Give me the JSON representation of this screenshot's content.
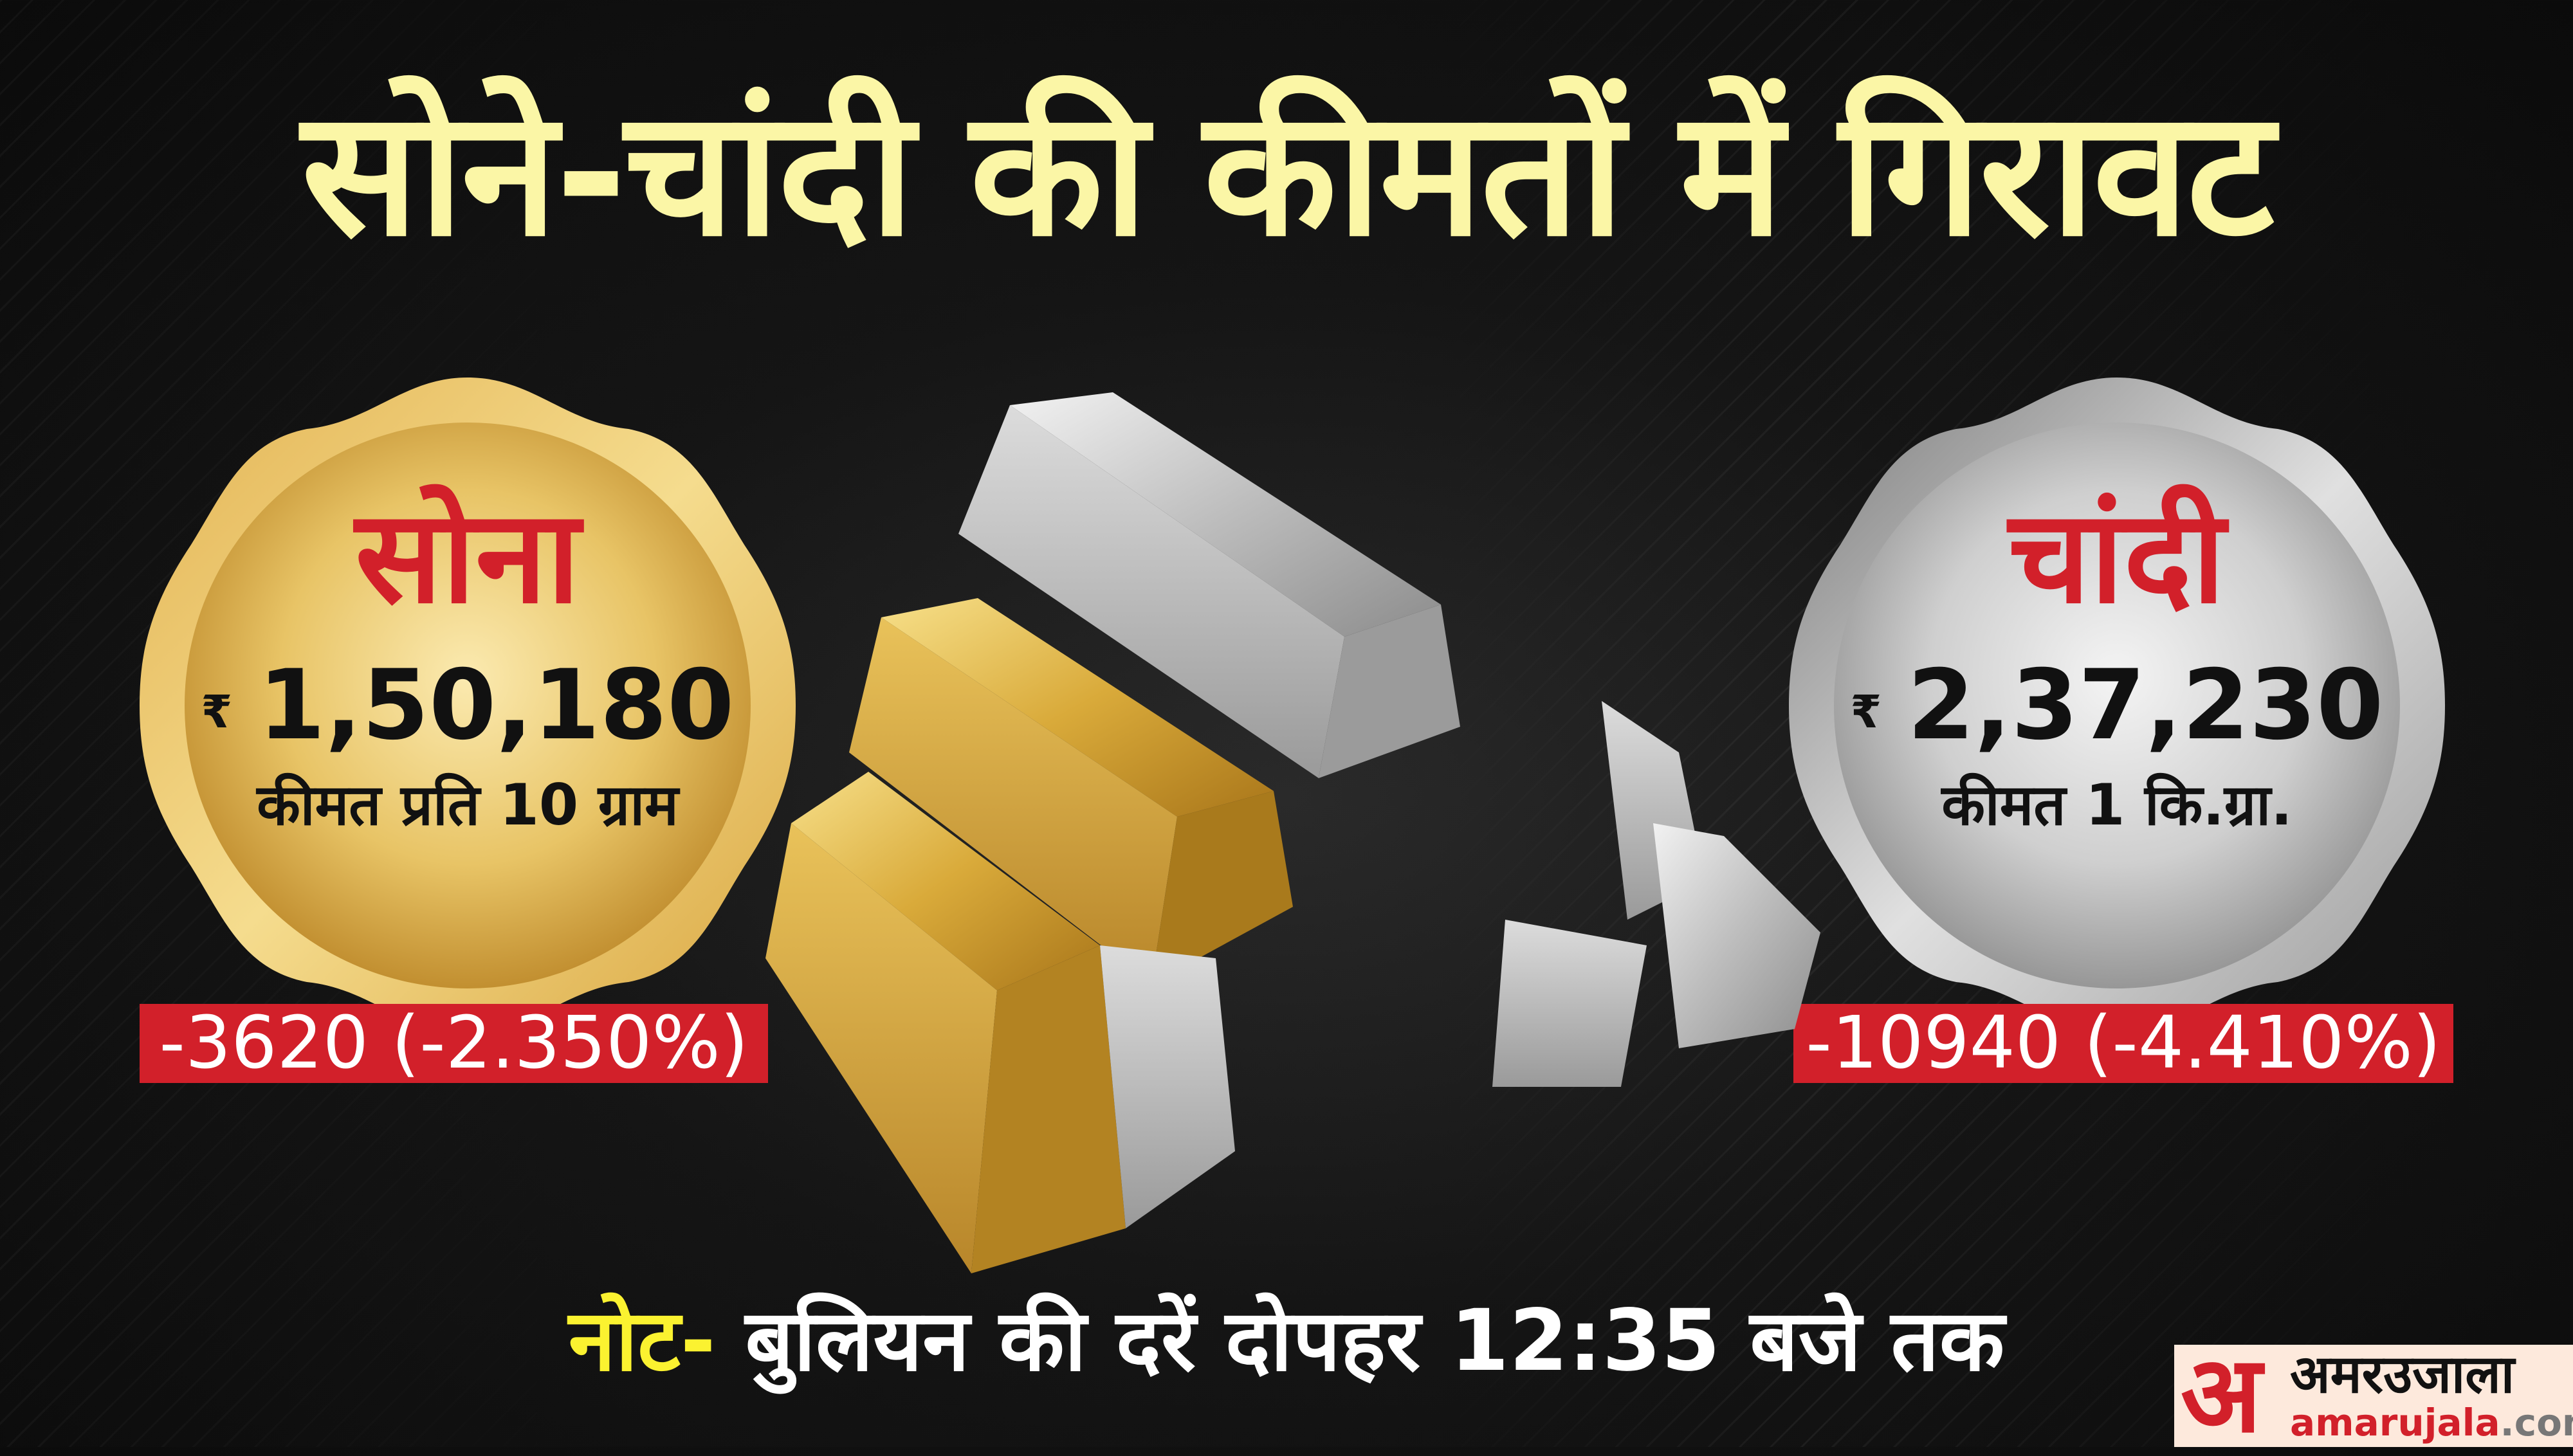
{
  "headline": "सोने-चांदी की कीमतों में गिरावट",
  "gold": {
    "name": "सोना",
    "currency_symbol": "₹",
    "price": "1,50,180",
    "unit": "कीमत प्रति 10 ग्राम",
    "change": "-3620 (-2.350%)",
    "badge_color": "#e6b650"
  },
  "silver": {
    "name": "चांदी",
    "currency_symbol": "₹",
    "price": "2,37,230",
    "unit": "कीमत 1 कि.ग्रा.",
    "change": "-10940 (-4.410%)",
    "badge_color": "#c8c8c8"
  },
  "note": {
    "label": "नोट-",
    "text": "बुलियन की दरें दोपहर 12:35 बजे तक"
  },
  "logo": {
    "mark": "अ",
    "hindi": "अमरउजाला",
    "site": "amarujala",
    "tld": ".com"
  },
  "colors": {
    "accent_red": "#d2202a",
    "title_yellow": "#fbf6a6",
    "note_yellow": "#fbf230"
  }
}
